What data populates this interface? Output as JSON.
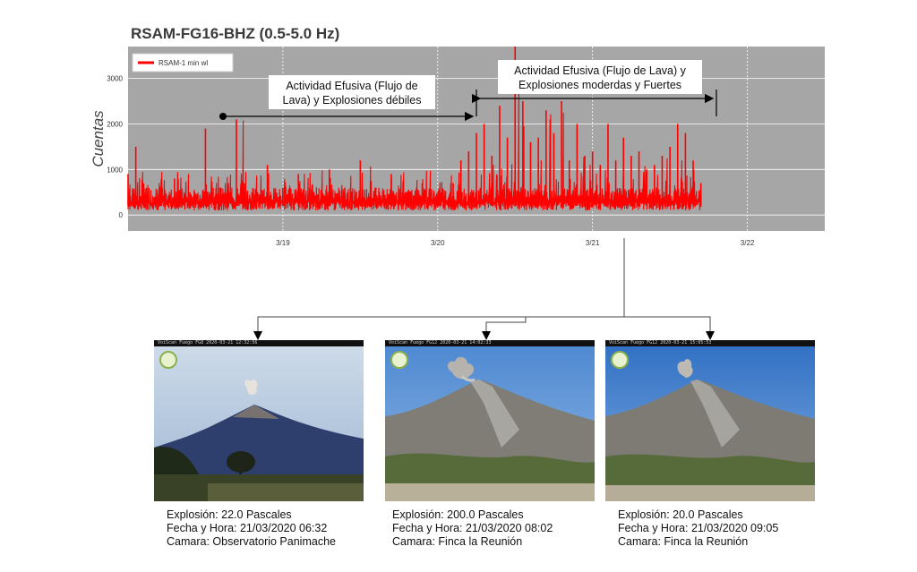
{
  "chart_data": {
    "type": "line",
    "title": "RSAM-FG16-BHZ (0.5-5.0 Hz)",
    "ylabel": "Cuentas",
    "ylim": [
      -350,
      3700
    ],
    "yticks": [
      0,
      1000,
      2000,
      3000
    ],
    "xlim": [
      3.18,
      3.22
    ],
    "xticks": [
      "3/19",
      "3/20",
      "3/21",
      "3/22"
    ],
    "grid": true,
    "legend_position": "top-left",
    "series": [
      {
        "name": "RSAM-1 min wl",
        "color": "#ff0000",
        "x": [
          18.0,
          18.05,
          18.1,
          18.2,
          18.3,
          18.4,
          18.5,
          18.6,
          18.7,
          18.75,
          18.8,
          18.9,
          19.0,
          19.1,
          19.2,
          19.3,
          19.4,
          19.5,
          19.6,
          19.7,
          19.8,
          19.9,
          20.0,
          20.1,
          20.15,
          20.2,
          20.25,
          20.3,
          20.35,
          20.4,
          20.45,
          20.5,
          20.55,
          20.6,
          20.65,
          20.7,
          20.75,
          20.8,
          20.85,
          20.9,
          20.95,
          21.0,
          21.05,
          21.1,
          21.15,
          21.2,
          21.25,
          21.3,
          21.35,
          21.4,
          21.45,
          21.5,
          21.55,
          21.6,
          21.65,
          21.7
        ],
        "values": [
          900,
          1500,
          700,
          400,
          800,
          500,
          1900,
          600,
          2100,
          700,
          500,
          1100,
          600,
          900,
          500,
          1000,
          600,
          1200,
          600,
          900,
          500,
          700,
          400,
          700,
          1200,
          1400,
          1800,
          2000,
          1300,
          2400,
          1700,
          3800,
          2500,
          1600,
          1700,
          2300,
          1800,
          2500,
          1200,
          2000,
          1300,
          1400,
          1100,
          2000,
          1200,
          1700,
          1300,
          1400,
          1000,
          1100,
          1300,
          1500,
          2000,
          1800,
          1200,
          700
        ]
      }
    ],
    "annotations": [
      {
        "text": "Actividad Efusiva (Flujo de Lava) y Explosiones débiles",
        "x_start": 18.77,
        "x_end": 20.3
      },
      {
        "text": "Actividad Efusiva (Flujo de Lava) y Explosiones moderdas y Fuertes",
        "x_start": 20.3,
        "x_end": 21.82
      }
    ]
  },
  "annotation_1": {
    "line1": "Actividad Efusiva (Flujo de",
    "line2": "Lava) y Explosiones débiles"
  },
  "annotation_2": {
    "line1": "Actividad Efusiva (Flujo de Lava) y",
    "line2": "Explosiones moderdas y Fuertes"
  },
  "cameras": [
    {
      "header": "VoiScan Fuego FG8 2020-03-21 12:32:56",
      "explosion": "Explosión:  22.0 Pascales",
      "fecha": "Fecha y Hora: 21/03/2020 06:32",
      "camara": "Camara: Observatorio Panimache"
    },
    {
      "header": "VoiScan Fuego FG12 2020-03-21 14:02:33",
      "explosion": "Explosión:  200.0 Pascales",
      "fecha": "Fecha y Hora: 21/03/2020 08:02",
      "camara": "Camara: Finca la Reunión"
    },
    {
      "header": "VoiScan Fuego FG12 2020-03-21 15:05:53",
      "explosion": "Explosión:  20.0 Pascales",
      "fecha": "Fecha y Hora: 21/03/2020 09:05",
      "camara": "Camara: Finca la Reunión"
    }
  ]
}
